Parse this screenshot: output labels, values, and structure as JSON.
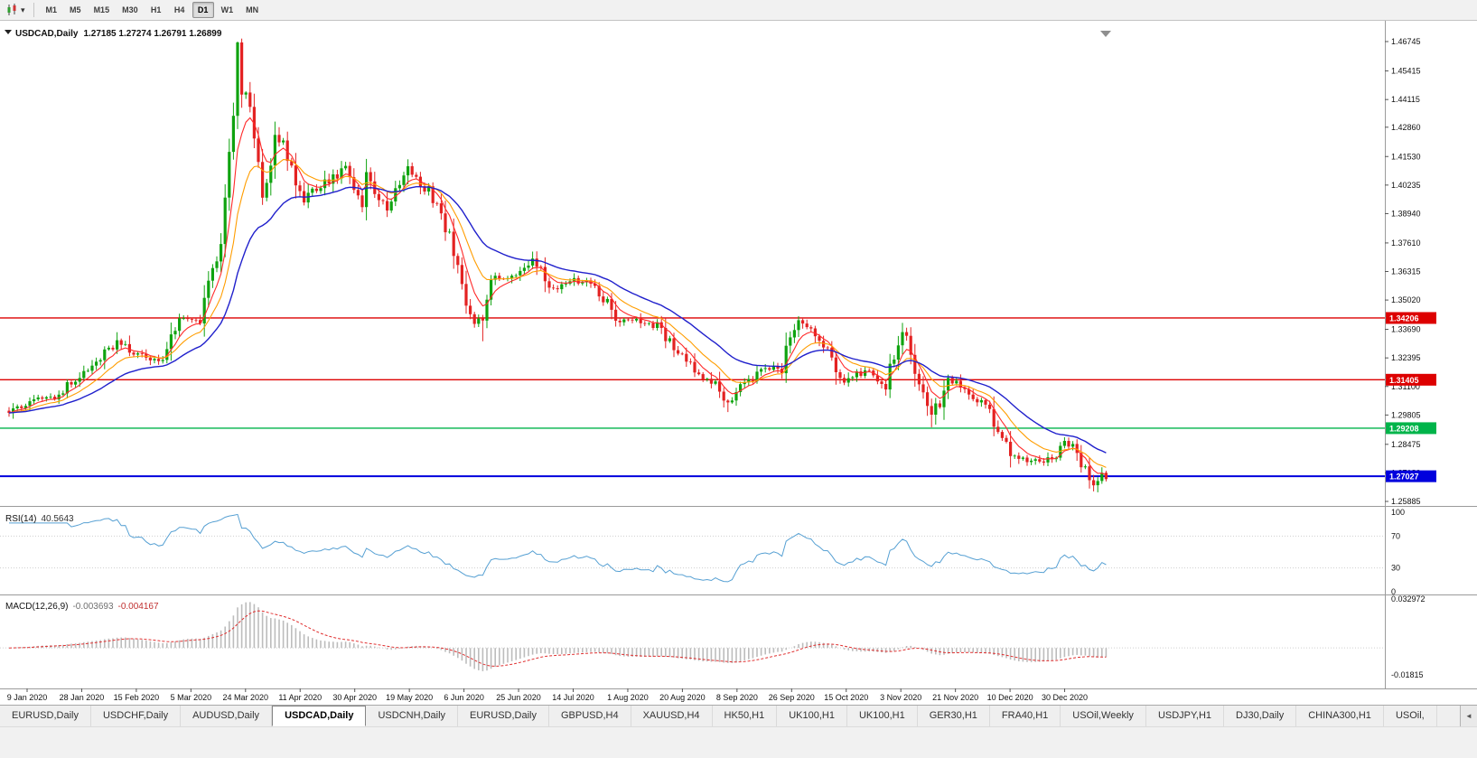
{
  "toolbar": {
    "timeframes": [
      "M1",
      "M5",
      "M15",
      "M30",
      "H1",
      "H4",
      "D1",
      "W1",
      "MN"
    ],
    "selected": "D1",
    "dropdown_icon": "▾"
  },
  "chart_header": {
    "symbol": "USDCAD,Daily",
    "ohlc_text": "1.27185 1.27274 1.26791 1.26899"
  },
  "price_axis": {
    "labels": [
      "1.46745",
      "1.45415",
      "1.44115",
      "1.42860",
      "1.41530",
      "1.40235",
      "1.38940",
      "1.37610",
      "1.36315",
      "1.35020",
      "1.33690",
      "1.32395",
      "1.31100",
      "1.29805",
      "1.28475",
      "1.27180",
      "1.25885"
    ]
  },
  "hlines": [
    {
      "price": 1.34206,
      "label": "1.34206",
      "color": "#dd0000",
      "width": 1.4
    },
    {
      "price": 1.31405,
      "label": "1.31405",
      "color": "#dd0000",
      "width": 1.4
    },
    {
      "price": 1.29208,
      "label": "1.29208",
      "color": "#00b44a",
      "width": 1.4
    },
    {
      "price": 1.27027,
      "label": "1.27027",
      "color": "#0000dd",
      "width": 2
    }
  ],
  "rsi": {
    "title": "RSI(14)",
    "value": "40.5643",
    "levels": [
      "100",
      "70",
      "30",
      "0"
    ],
    "line_color": "#56a0d3"
  },
  "macd": {
    "title": "MACD(12,26,9)",
    "value_main": "-0.003693",
    "value_signal": "-0.004167",
    "axis_labels": [
      "0.032972",
      "-0.01815"
    ],
    "histogram_color": "#bcbcbc",
    "signal_color": "#e03030"
  },
  "date_axis": {
    "labels": [
      "9 Jan 2020",
      "28 Jan 2020",
      "15 Feb 2020",
      "5 Mar 2020",
      "24 Mar 2020",
      "11 Apr 2020",
      "30 Apr 2020",
      "19 May 2020",
      "6 Jun 2020",
      "25 Jun 2020",
      "14 Jul 2020",
      "1 Aug 2020",
      "20 Aug 2020",
      "8 Sep 2020",
      "26 Sep 2020",
      "15 Oct 2020",
      "3 Nov 2020",
      "21 Nov 2020",
      "10 Dec 2020",
      "30 Dec 2020"
    ]
  },
  "tabs": {
    "items": [
      "EURUSD,Daily",
      "USDCHF,Daily",
      "AUDUSD,Daily",
      "USDCAD,Daily",
      "USDCNH,Daily",
      "EURUSD,Daily",
      "GBPUSD,H4",
      "XAUUSD,H4",
      "HK50,H1",
      "UK100,H1",
      "UK100,H1",
      "GER30,H1",
      "FRA40,H1",
      "USOil,Weekly",
      "USDJPY,H1",
      "DJ30,Daily",
      "CHINA300,H1",
      "USOil,"
    ],
    "active_index": 3,
    "scroll_left_icon": "◄"
  },
  "chart_data": {
    "type": "candlestick",
    "title": "USDCAD Daily",
    "x_axis": "dates Jan 2020 - Jan 2021",
    "x_tick_labels": [
      "9 Jan 2020",
      "28 Jan 2020",
      "15 Feb 2020",
      "5 Mar 2020",
      "24 Mar 2020",
      "11 Apr 2020",
      "30 Apr 2020",
      "19 May 2020",
      "6 Jun 2020",
      "25 Jun 2020",
      "14 Jul 2020",
      "1 Aug 2020",
      "20 Aug 2020",
      "8 Sep 2020",
      "26 Sep 2020",
      "15 Oct 2020",
      "3 Nov 2020",
      "21 Nov 2020",
      "10 Dec 2020",
      "30 Dec 2020"
    ],
    "y_range": [
      1.25803,
      1.47278
    ],
    "bars_total": 265,
    "current_bar": {
      "open": 1.27185,
      "high": 1.27274,
      "low": 1.26791,
      "close": 1.26899
    },
    "up_color": "#0fa30f",
    "down_color": "#e32222",
    "close_keyframes": [
      [
        0,
        1.299
      ],
      [
        6,
        1.3052
      ],
      [
        11,
        1.3065
      ],
      [
        16,
        1.3142
      ],
      [
        21,
        1.3232
      ],
      [
        26,
        1.3305
      ],
      [
        31,
        1.3255
      ],
      [
        36,
        1.3225
      ],
      [
        41,
        1.3405
      ],
      [
        46,
        1.342
      ],
      [
        51,
        1.38
      ],
      [
        54,
        1.435
      ],
      [
        55,
        1.462
      ],
      [
        56,
        1.443
      ],
      [
        57,
        1.449
      ],
      [
        61,
        1.399
      ],
      [
        64,
        1.423
      ],
      [
        66,
        1.419
      ],
      [
        71,
        1.3955
      ],
      [
        76,
        1.4035
      ],
      [
        81,
        1.4095
      ],
      [
        85,
        1.392
      ],
      [
        86,
        1.406
      ],
      [
        91,
        1.3925
      ],
      [
        96,
        1.411
      ],
      [
        101,
        1.3995
      ],
      [
        106,
        1.378
      ],
      [
        111,
        1.342
      ],
      [
        114,
        1.339
      ],
      [
        116,
        1.3605
      ],
      [
        121,
        1.3605
      ],
      [
        126,
        1.3685
      ],
      [
        131,
        1.355
      ],
      [
        136,
        1.359
      ],
      [
        141,
        1.358
      ],
      [
        146,
        1.3415
      ],
      [
        151,
        1.341
      ],
      [
        156,
        1.3385
      ],
      [
        161,
        1.3265
      ],
      [
        166,
        1.3175
      ],
      [
        171,
        1.31
      ],
      [
        173,
        1.3015
      ],
      [
        176,
        1.31
      ],
      [
        181,
        1.318
      ],
      [
        186,
        1.3205
      ],
      [
        190,
        1.3415
      ],
      [
        191,
        1.3385
      ],
      [
        196,
        1.3315
      ],
      [
        201,
        1.3125
      ],
      [
        206,
        1.319
      ],
      [
        211,
        1.3125
      ],
      [
        215,
        1.336
      ],
      [
        216,
        1.332
      ],
      [
        220,
        1.305
      ],
      [
        222,
        1.296
      ],
      [
        226,
        1.314
      ],
      [
        231,
        1.309
      ],
      [
        236,
        1.299
      ],
      [
        241,
        1.2785
      ],
      [
        246,
        1.277
      ],
      [
        251,
        1.2785
      ],
      [
        255,
        1.2865
      ],
      [
        259,
        1.2725
      ],
      [
        261,
        1.2665
      ],
      [
        264,
        1.269
      ]
    ],
    "forced_extremes": [
      {
        "bar": 55,
        "high": 1.46745
      },
      {
        "bar": 114,
        "low": 1.3315
      },
      {
        "bar": 173,
        "low": 1.2994
      },
      {
        "bar": 222,
        "low": 1.2925
      },
      {
        "bar": 262,
        "low": 1.263
      }
    ],
    "moving_averages": [
      {
        "period": 6,
        "color": "#ff2a2a",
        "width": 1.1
      },
      {
        "period": 13,
        "color": "#ff9d00",
        "width": 1.1
      },
      {
        "period": 28,
        "color": "#2020cc",
        "width": 1.4
      }
    ],
    "horizontal_levels": [
      1.34206,
      1.31405,
      1.29208,
      1.27027
    ],
    "indicators": [
      {
        "name": "RSI",
        "period": 14,
        "current": 40.5643,
        "levels": [
          70,
          30
        ]
      },
      {
        "name": "MACD",
        "fast": 12,
        "slow": 26,
        "signal": 9,
        "current_main": -0.003693,
        "current_signal": -0.004167,
        "scale_max": 0.032972,
        "scale_min": -0.01815
      }
    ]
  }
}
